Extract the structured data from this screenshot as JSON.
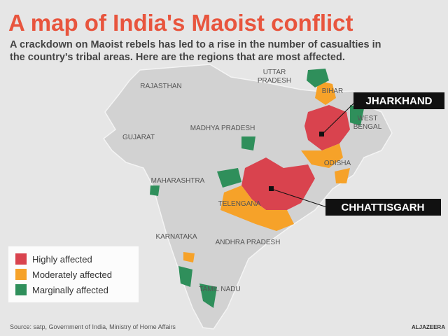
{
  "header": {
    "title": "A map of India's Maoist conflict",
    "subtitle_lines": [
      "A crackdown on Maoist rebels has led to a rise in the number of casualties in",
      "the country's tribal areas. Here are the regions that are most affected."
    ]
  },
  "map": {
    "regions": [
      {
        "label_lines": [
          "UTTAR",
          "PRADESH"
        ]
      },
      {
        "label_lines": [
          "RAJASTHAN"
        ]
      },
      {
        "label_lines": [
          "BIHAR"
        ]
      },
      {
        "label_lines": [
          "WEST",
          "BENGAL"
        ]
      },
      {
        "label_lines": [
          "MADHYA PRADESH"
        ]
      },
      {
        "label_lines": [
          "GUJARAT"
        ]
      },
      {
        "label_lines": [
          "ODISHA"
        ]
      },
      {
        "label_lines": [
          "MAHARASHTRA"
        ]
      },
      {
        "label_lines": [
          "TELENGANA"
        ]
      },
      {
        "label_lines": [
          "KARNATAKA"
        ]
      },
      {
        "label_lines": [
          "ANDHRA PRADESH"
        ]
      },
      {
        "label_lines": [
          "TAMIL NADU"
        ]
      }
    ],
    "callouts": [
      {
        "label": "JHARKHAND"
      },
      {
        "label": "CHHATTISGARH"
      }
    ]
  },
  "legend": {
    "items": [
      {
        "label": "Highly affected",
        "color": "#d9434e"
      },
      {
        "label": "Moderately affected",
        "color": "#f6a229"
      },
      {
        "label": "Marginally affected",
        "color": "#2f8f5b"
      }
    ]
  },
  "footer": {
    "source": "Source: satp, Government of India, Ministry of Home Affairs",
    "logo": "ALJAZEERA"
  }
}
